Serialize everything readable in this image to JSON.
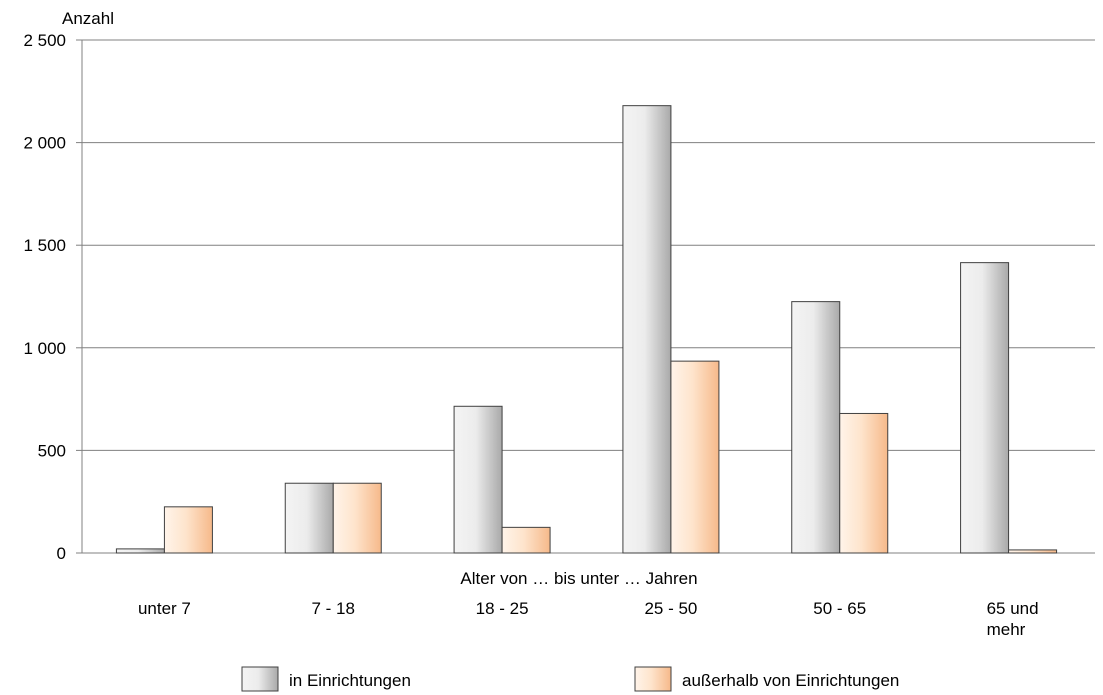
{
  "chart_data": {
    "type": "bar",
    "ylabel": "Anzahl",
    "xlabel": "Alter von … bis unter … Jahren",
    "ylim": [
      0,
      2500
    ],
    "yticks": [
      0,
      500,
      1000,
      1500,
      2000,
      2500
    ],
    "ytick_labels": [
      "0",
      "500",
      "1 000",
      "1 500",
      "2 000",
      "2 500"
    ],
    "categories": [
      [
        "unter 7"
      ],
      [
        "7 - 18"
      ],
      [
        "18 - 25"
      ],
      [
        "25 - 50"
      ],
      [
        "50 - 65"
      ],
      [
        "65 und",
        "mehr"
      ]
    ],
    "series": [
      {
        "name": "in Einrichtungen",
        "values": [
          20,
          340,
          715,
          2180,
          1225,
          1415
        ]
      },
      {
        "name": "außerhalb von Einrichtungen",
        "values": [
          225,
          340,
          125,
          935,
          680,
          15
        ]
      }
    ],
    "colors": {
      "series0_light": "#f4f4f4",
      "series0_dark": "#a9a9a9",
      "series1_light": "#fff4ea",
      "series1_dark": "#f6b98a",
      "bar_stroke": "#404040",
      "grid": "#808080"
    },
    "grid": true,
    "legend_position": "bottom"
  }
}
